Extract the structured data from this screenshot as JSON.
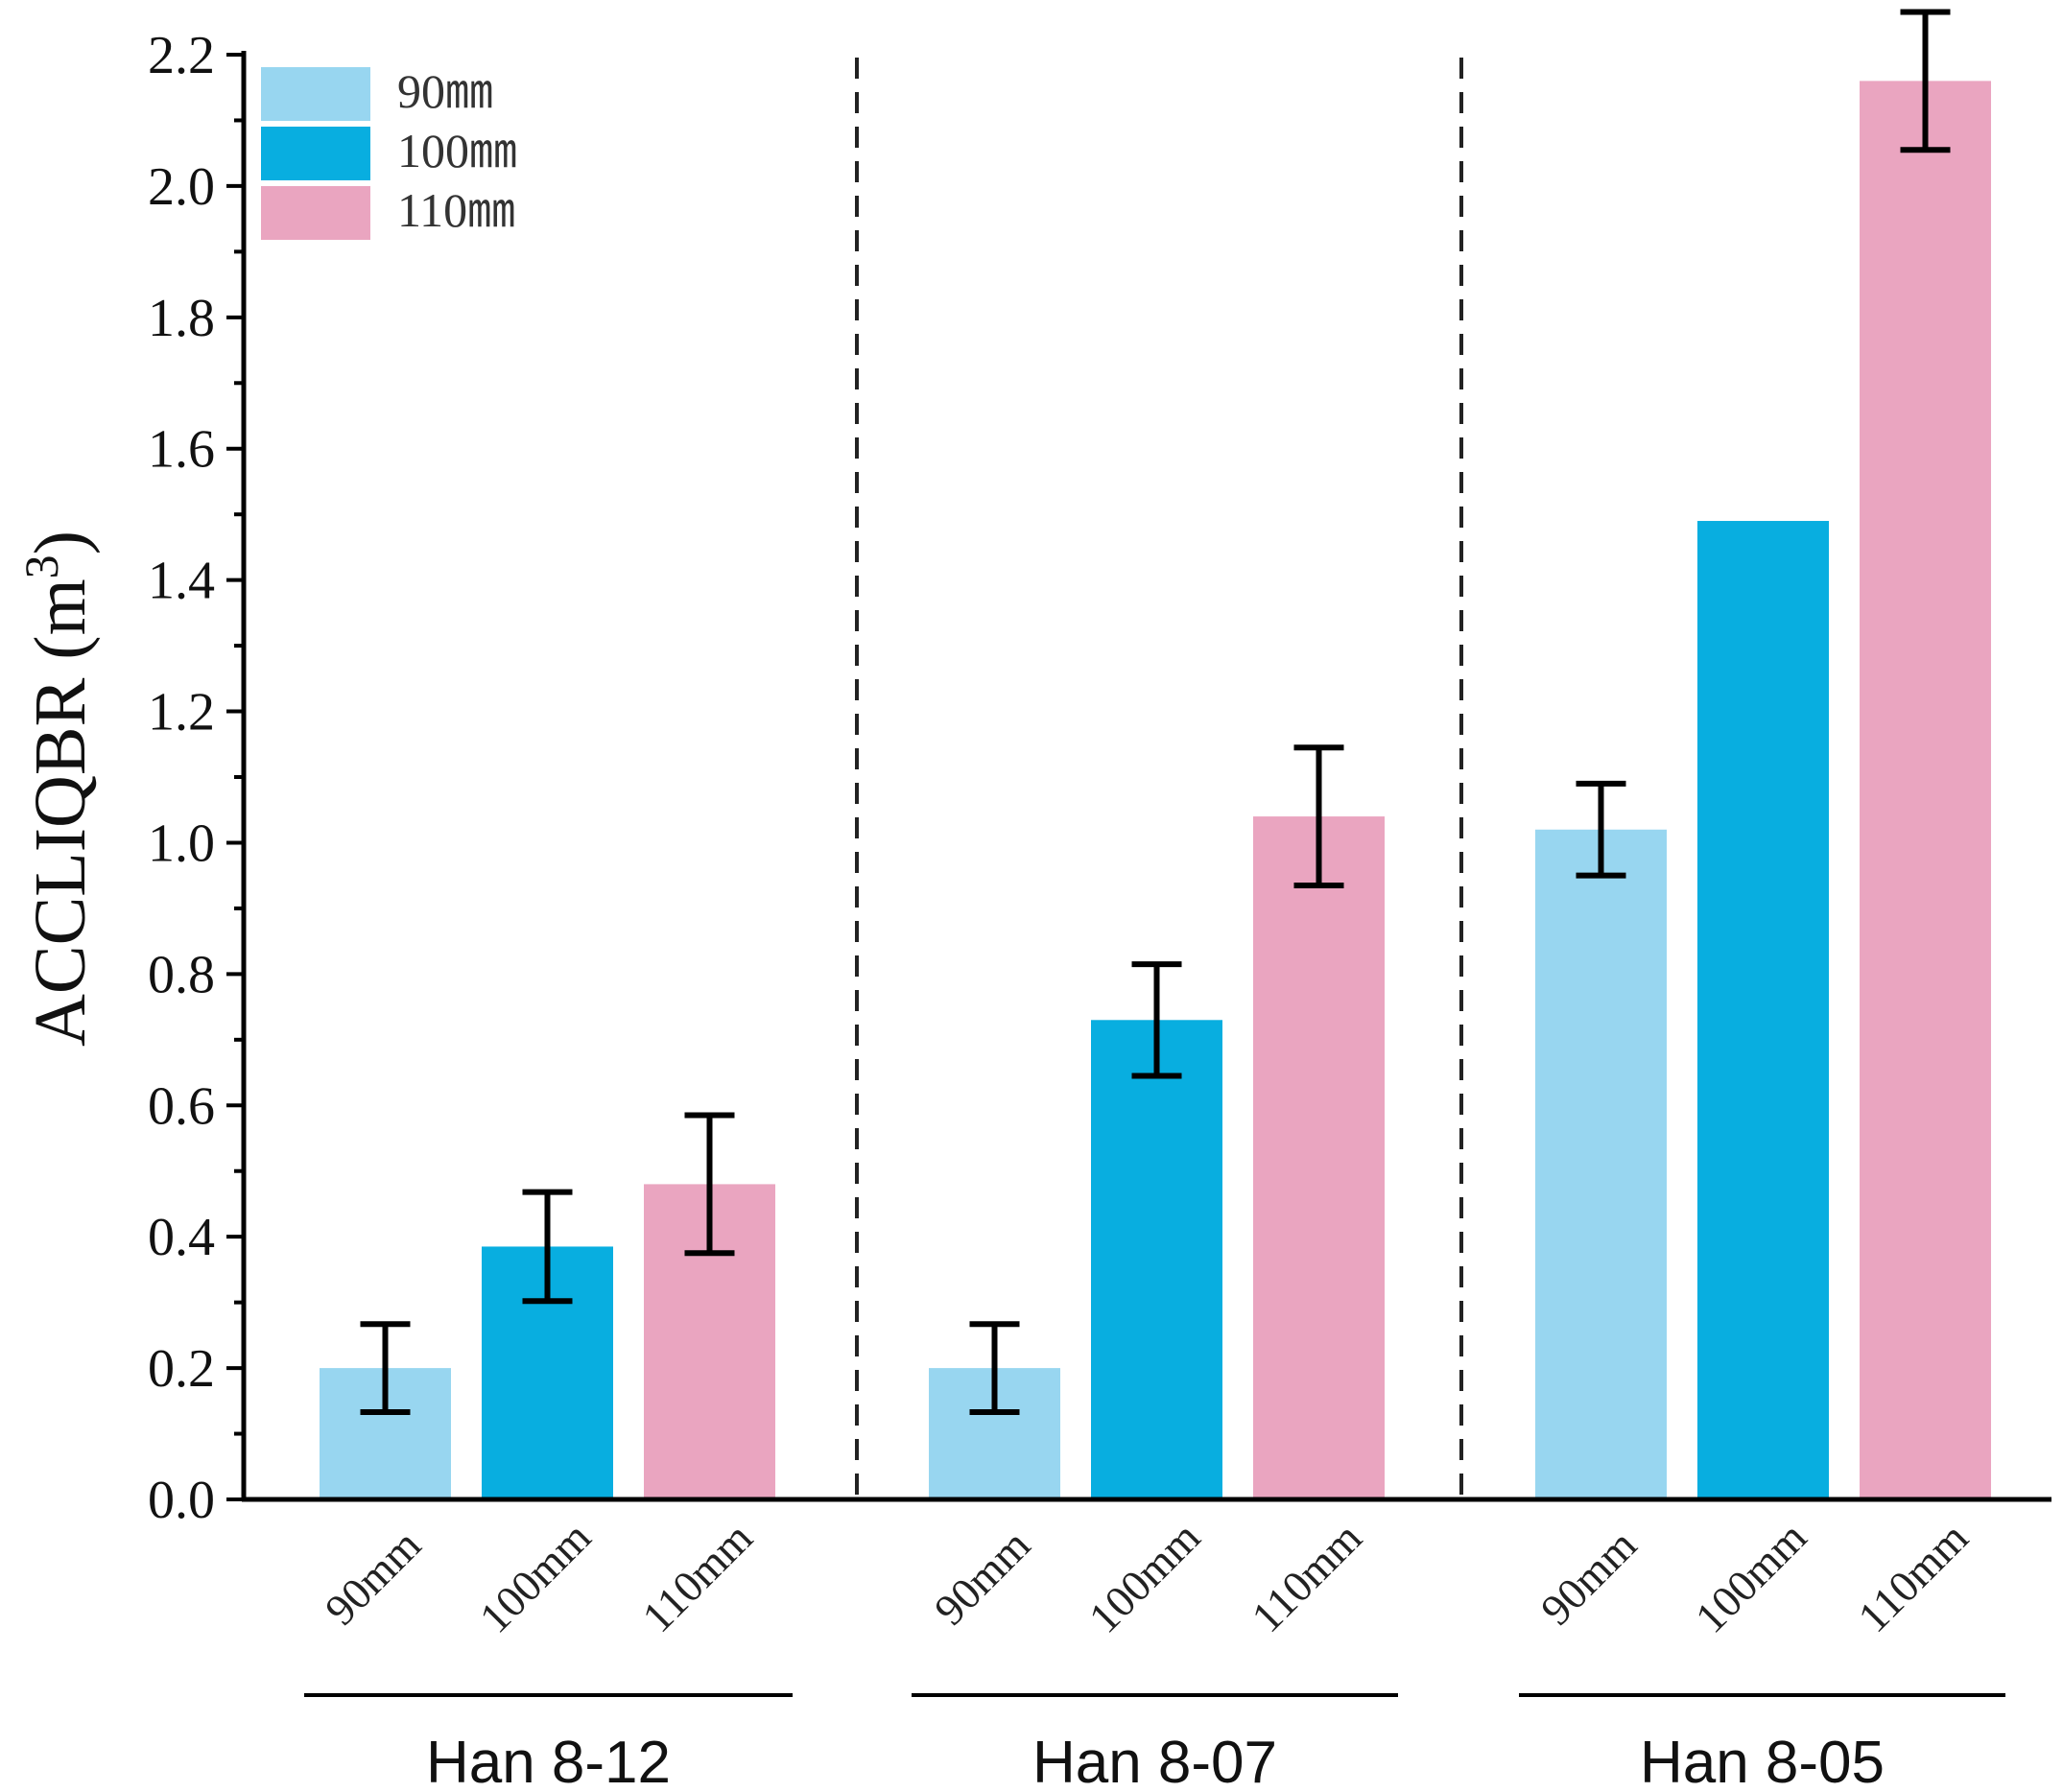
{
  "chart_data": {
    "type": "bar",
    "title": "",
    "ylabel": "ACCLIQBR (m",
    "ylabel_superscript": "3",
    "ylabel_close": ")",
    "ylim": [
      0,
      2.2
    ],
    "yticks": [
      "0.0",
      "0.2",
      "0.4",
      "0.6",
      "0.8",
      "1.0",
      "1.2",
      "1.4",
      "1.6",
      "1.8",
      "2.0",
      "2.2"
    ],
    "ytick_values": [
      0,
      0.2,
      0.4,
      0.6,
      0.8,
      1.0,
      1.2,
      1.4,
      1.6,
      1.8,
      2.0,
      2.2
    ],
    "groups": [
      "Han 8-12",
      "Han 8-07",
      "Han 8-05"
    ],
    "categories": [
      "90mm",
      "100mm",
      "110mm"
    ],
    "legend_position": "top-left",
    "legend": [
      "90㎜",
      "100㎜",
      "110㎜"
    ],
    "series": [
      {
        "name": "90mm",
        "color": "#98d6f0",
        "values": [
          0.2,
          0.2,
          1.02
        ],
        "errors": [
          0.067,
          0.067,
          0.07
        ]
      },
      {
        "name": "100mm",
        "color": "#08aee0",
        "values": [
          0.385,
          0.73,
          1.49
        ],
        "errors": [
          0.083,
          0.085,
          null
        ]
      },
      {
        "name": "110mm",
        "color": "#eaa5c0",
        "values": [
          0.48,
          1.04,
          2.16
        ],
        "errors": [
          0.105,
          0.105,
          0.105
        ]
      }
    ]
  }
}
